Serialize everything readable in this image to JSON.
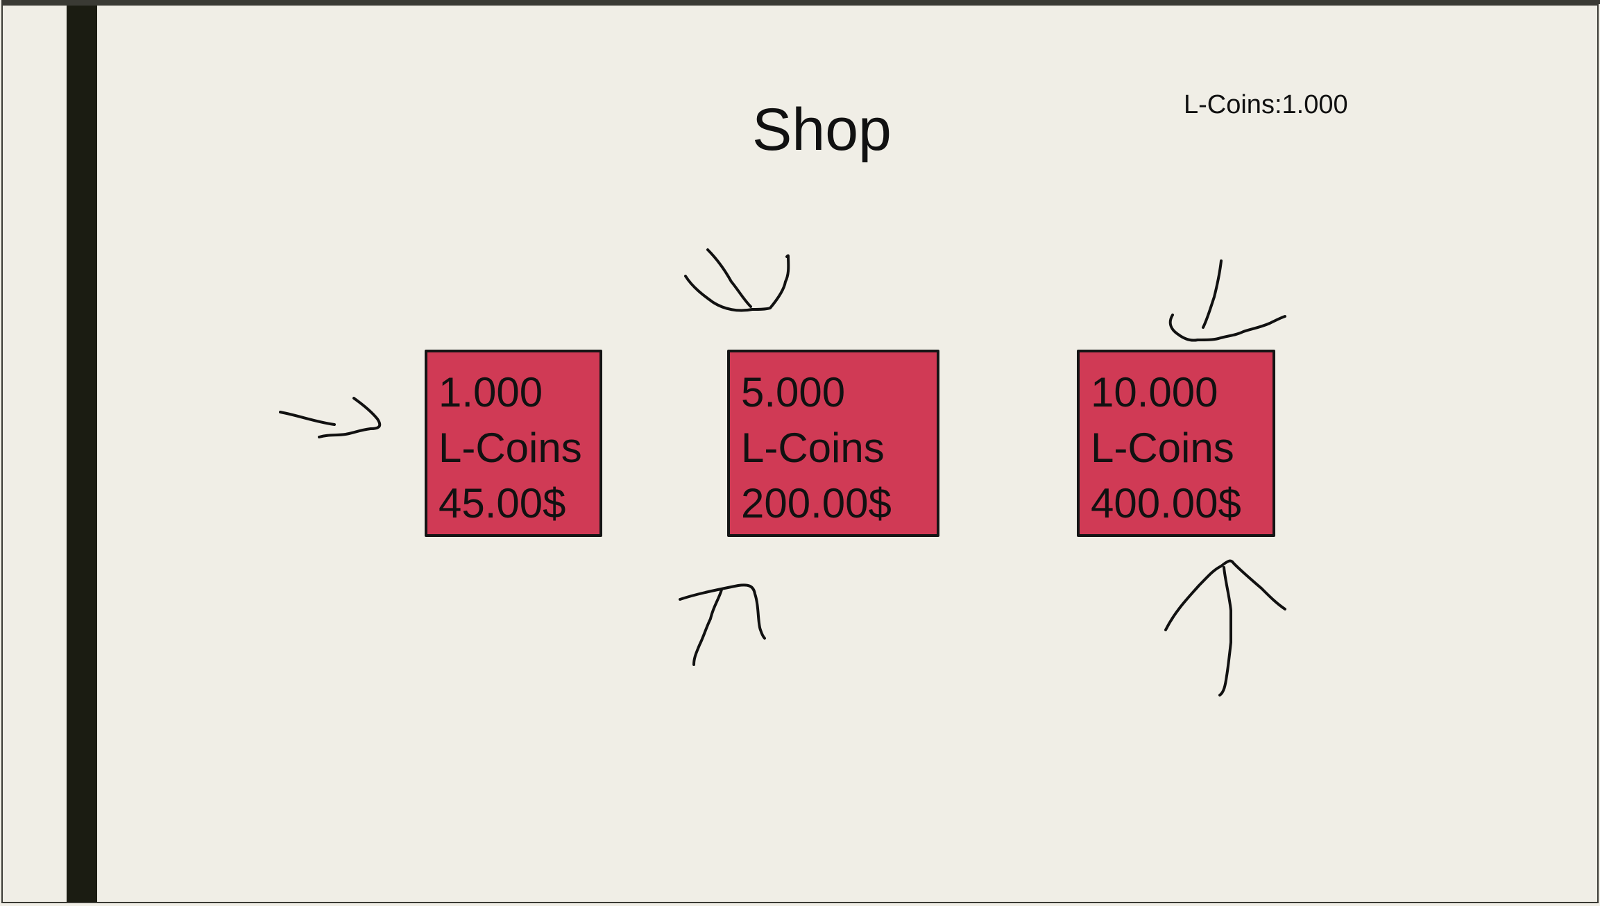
{
  "title": "Shop",
  "balance": {
    "text": "L-Coins:1.000"
  },
  "offers": [
    {
      "amount": "1.000",
      "currency": "L-Coins",
      "price": "45.00$"
    },
    {
      "amount": "5.000",
      "currency": "L-Coins",
      "price": "200.00$"
    },
    {
      "amount": "10.000",
      "currency": "L-Coins",
      "price": "400.00$"
    }
  ],
  "colors": {
    "background": "#f0eee6",
    "offer_fill": "#d03a55",
    "sidebar": "#1b1c12"
  }
}
